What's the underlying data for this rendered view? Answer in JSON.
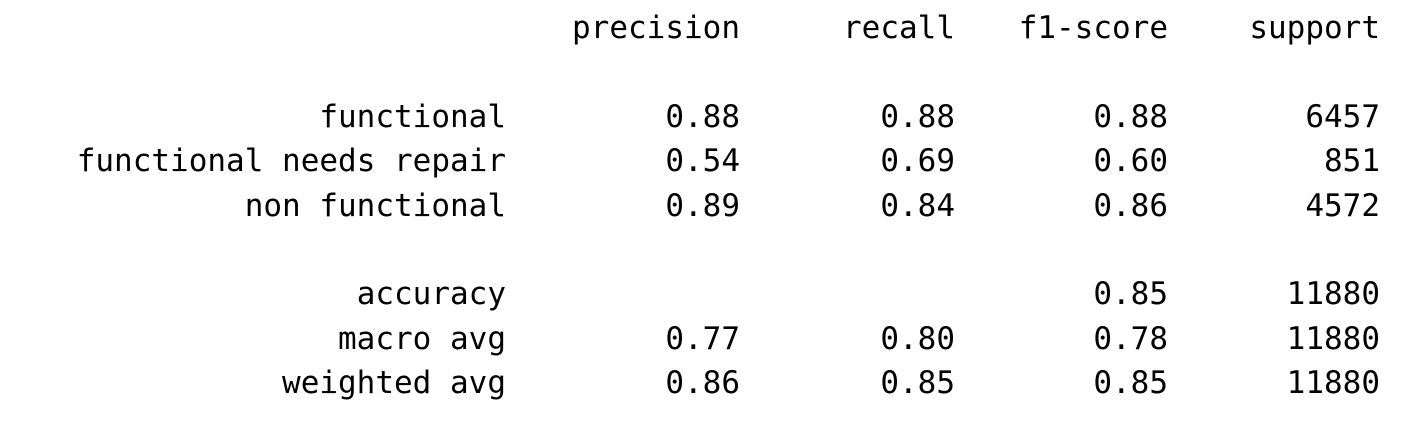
{
  "header": {
    "precision": "precision",
    "recall": "recall",
    "f1_score": "f1-score",
    "support": "support"
  },
  "class_rows": [
    {
      "label": "functional",
      "precision": "0.88",
      "recall": "0.88",
      "f1_score": "0.88",
      "support": "6457"
    },
    {
      "label": "functional needs repair",
      "precision": "0.54",
      "recall": "0.69",
      "f1_score": "0.60",
      "support": "851"
    },
    {
      "label": "non functional",
      "precision": "0.89",
      "recall": "0.84",
      "f1_score": "0.86",
      "support": "4572"
    }
  ],
  "summary_rows": [
    {
      "label": "accuracy",
      "precision": "",
      "recall": "",
      "f1_score": "0.85",
      "support": "11880"
    },
    {
      "label": "macro avg",
      "precision": "0.77",
      "recall": "0.80",
      "f1_score": "0.78",
      "support": "11880"
    },
    {
      "label": "weighted avg",
      "precision": "0.86",
      "recall": "0.85",
      "f1_score": "0.85",
      "support": "11880"
    }
  ]
}
